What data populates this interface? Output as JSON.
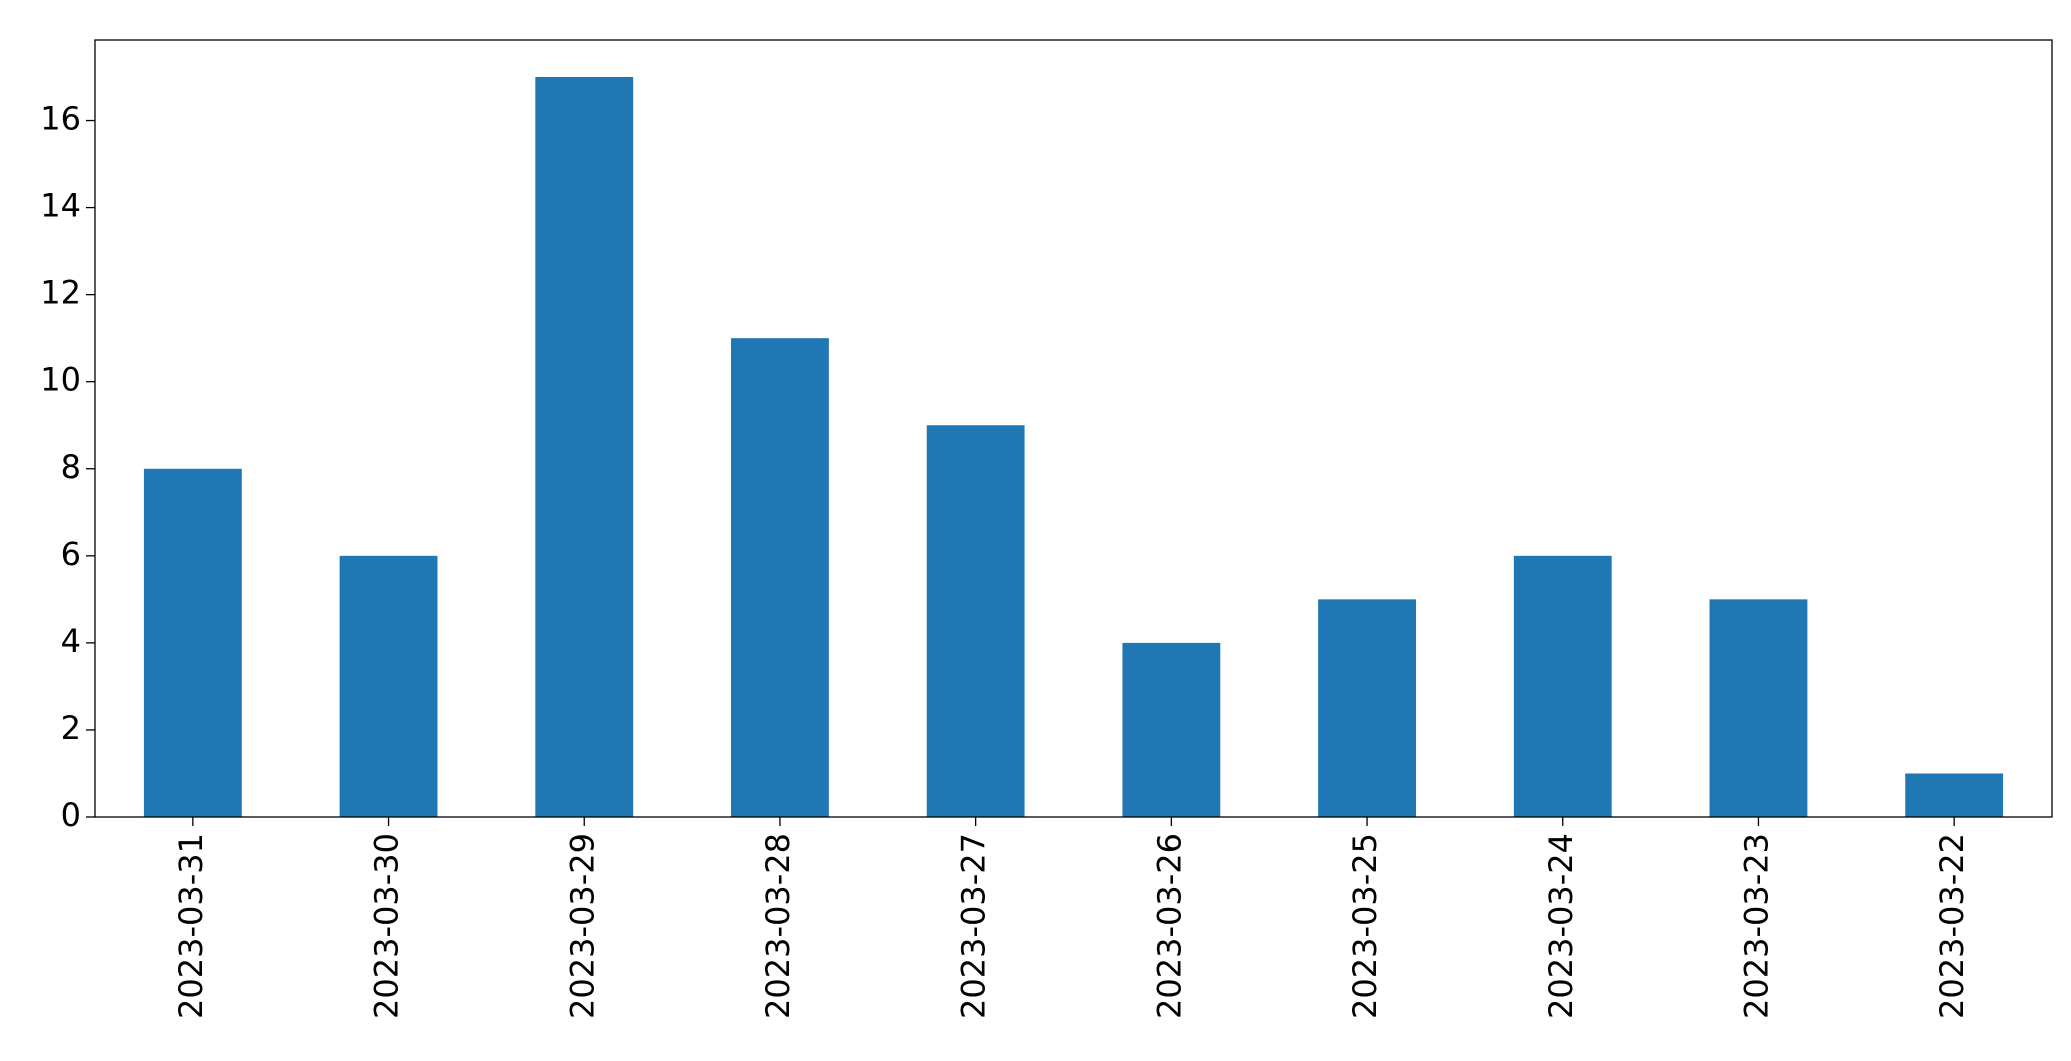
{
  "chart_data": {
    "type": "bar",
    "categories": [
      "2023-03-31",
      "2023-03-30",
      "2023-03-29",
      "2023-03-28",
      "2023-03-27",
      "2023-03-26",
      "2023-03-25",
      "2023-03-24",
      "2023-03-23",
      "2023-03-22"
    ],
    "values": [
      8,
      6,
      17,
      11,
      9,
      4,
      5,
      6,
      5,
      1
    ],
    "color": "#1f77b4",
    "ylim": [
      0,
      17.85
    ],
    "yticks": [
      0,
      2,
      4,
      6,
      8,
      10,
      12,
      14,
      16
    ],
    "grid": false
  }
}
